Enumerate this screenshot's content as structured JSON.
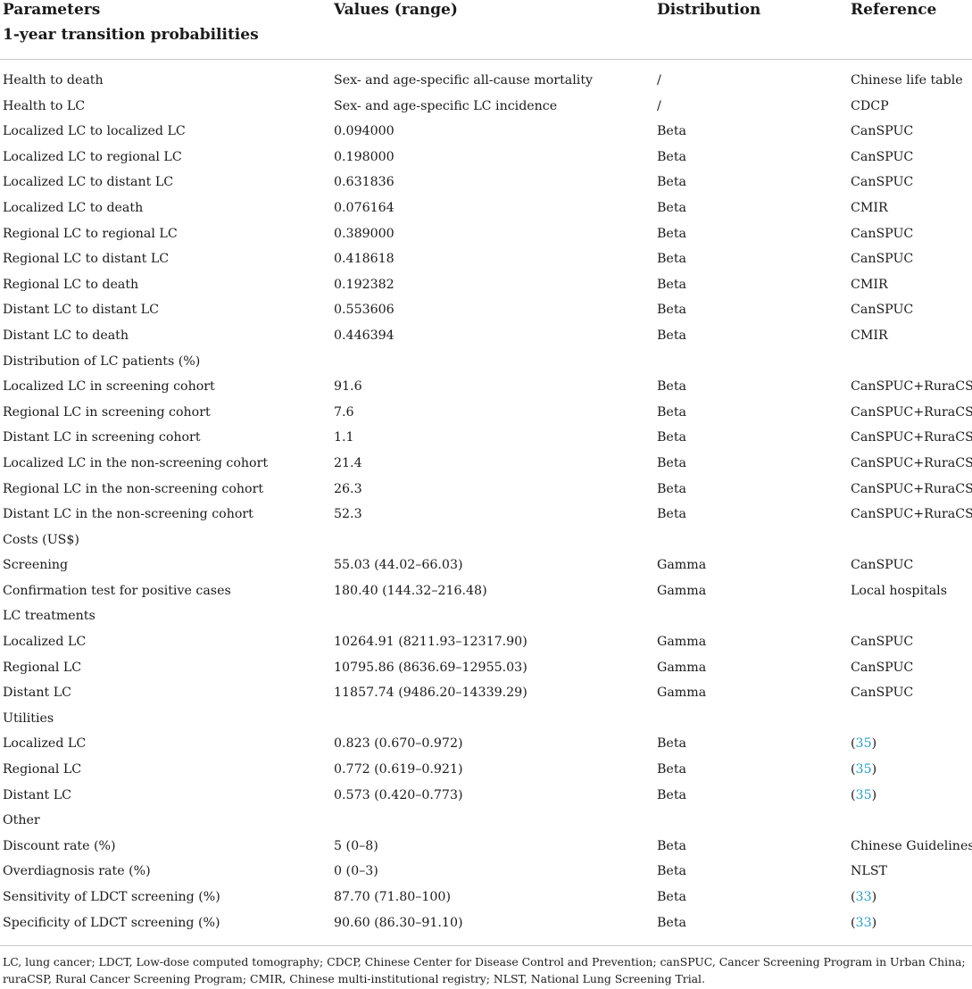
{
  "header": {
    "col1": "Parameters",
    "col1_sub": "1-year transition probabilities",
    "col2": "Values (range)",
    "col3": "Distribution",
    "col4": "Reference"
  },
  "rows": [
    {
      "param": "Health to death",
      "value": "Sex- and age-specific all-cause mortality",
      "dist": "/",
      "ref": "Chinese life table"
    },
    {
      "param": "Health to LC",
      "value": "Sex- and age-specific LC incidence",
      "dist": "/",
      "ref": "CDCP"
    },
    {
      "param": "Localized LC to localized LC",
      "value": "0.094000",
      "dist": "Beta",
      "ref": "CanSPUC"
    },
    {
      "param": "Localized LC to regional LC",
      "value": "0.198000",
      "dist": "Beta",
      "ref": "CanSPUC"
    },
    {
      "param": "Localized LC to distant LC",
      "value": "0.631836",
      "dist": "Beta",
      "ref": "CanSPUC"
    },
    {
      "param": "Localized LC to death",
      "value": "0.076164",
      "dist": "Beta",
      "ref": "CMIR"
    },
    {
      "param": "Regional LC to regional LC",
      "value": "0.389000",
      "dist": "Beta",
      "ref": "CanSPUC"
    },
    {
      "param": "Regional LC to distant LC",
      "value": "0.418618",
      "dist": "Beta",
      "ref": "CanSPUC"
    },
    {
      "param": "Regional LC to death",
      "value": "0.192382",
      "dist": "Beta",
      "ref": "CMIR"
    },
    {
      "param": "Distant LC to distant LC",
      "value": "0.553606",
      "dist": "Beta",
      "ref": "CanSPUC"
    },
    {
      "param": "Distant LC to death",
      "value": "0.446394",
      "dist": "Beta",
      "ref": "CMIR"
    },
    {
      "param": "Distribution of LC patients (%)",
      "value": "",
      "dist": "",
      "ref": ""
    },
    {
      "param": "Localized LC in screening cohort",
      "value": "91.6",
      "dist": "Beta",
      "ref": "CanSPUC+RuraCSP"
    },
    {
      "param": "Regional LC in screening cohort",
      "value": "7.6",
      "dist": "Beta",
      "ref": "CanSPUC+RuraCSP"
    },
    {
      "param": "Distant LC in screening cohort",
      "value": "1.1",
      "dist": "Beta",
      "ref": "CanSPUC+RuraCSP"
    },
    {
      "param": "Localized LC in the non-screening cohort",
      "value": "21.4",
      "dist": "Beta",
      "ref": "CanSPUC+RuraCSP"
    },
    {
      "param": "Regional LC in the non-screening cohort",
      "value": "26.3",
      "dist": "Beta",
      "ref": "CanSPUC+RuraCSP"
    },
    {
      "param": "Distant LC in the non-screening cohort",
      "value": "52.3",
      "dist": "Beta",
      "ref": "CanSPUC+RuraCSP"
    },
    {
      "param": "Costs (US$)",
      "value": "",
      "dist": "",
      "ref": ""
    },
    {
      "param": "Screening",
      "value": "55.03 (44.02–66.03)",
      "dist": "Gamma",
      "ref": "CanSPUC"
    },
    {
      "param": "Confirmation test for positive cases",
      "value": "180.40 (144.32–216.48)",
      "dist": "Gamma",
      "ref": "Local hospitals"
    },
    {
      "param": "LC treatments",
      "value": "",
      "dist": "",
      "ref": ""
    },
    {
      "param": "Localized LC",
      "value": "10264.91 (8211.93–12317.90)",
      "dist": "Gamma",
      "ref": "CanSPUC"
    },
    {
      "param": "Regional LC",
      "value": "10795.86 (8636.69–12955.03)",
      "dist": "Gamma",
      "ref": "CanSPUC"
    },
    {
      "param": "Distant LC",
      "value": "11857.74 (9486.20–14339.29)",
      "dist": "Gamma",
      "ref": "CanSPUC"
    },
    {
      "param": "Utilities",
      "value": "",
      "dist": "",
      "ref": ""
    },
    {
      "param": "Localized LC",
      "value": "0.823 (0.670–0.972)",
      "dist": "Beta",
      "ref_pre": "(",
      "ref_link": "35",
      "ref_post": ")"
    },
    {
      "param": "Regional LC",
      "value": "0.772 (0.619–0.921)",
      "dist": "Beta",
      "ref_pre": "(",
      "ref_link": "35",
      "ref_post": ")"
    },
    {
      "param": "Distant LC",
      "value": "0.573 (0.420–0.773)",
      "dist": "Beta",
      "ref_pre": "(",
      "ref_link": "35",
      "ref_post": ")"
    },
    {
      "param": "Other",
      "value": "",
      "dist": "",
      "ref": ""
    },
    {
      "param": "Discount rate (%)",
      "value": "5 (0–8)",
      "dist": "Beta",
      "ref": "Chinese Guidelines"
    },
    {
      "param": "Overdiagnosis rate (%)",
      "value": "0 (0–3)",
      "dist": "Beta",
      "ref": "NLST"
    },
    {
      "param": "Sensitivity of LDCT screening (%)",
      "value": "87.70 (71.80–100)",
      "dist": "Beta",
      "ref_pre": "(",
      "ref_link": "33",
      "ref_post": ")"
    },
    {
      "param": "Specificity of LDCT screening (%)",
      "value": "90.60 (86.30–91.10)",
      "dist": "Beta",
      "ref_pre": "(",
      "ref_link": "33",
      "ref_post": ")"
    }
  ],
  "footnote": "LC, lung cancer; LDCT, Low-dose computed tomography; CDCP, Chinese Center for Disease Control and Prevention; canSPUC, Cancer Screening Program in Urban China; ruraCSP, Rural Cancer Screening Program; CMIR, Chinese multi-institutional registry; NLST, National Lung Screening Trial.",
  "colors": {
    "text": "#1a1a1a",
    "link": "#2a9dc4",
    "rule": "#c8c8c8"
  }
}
